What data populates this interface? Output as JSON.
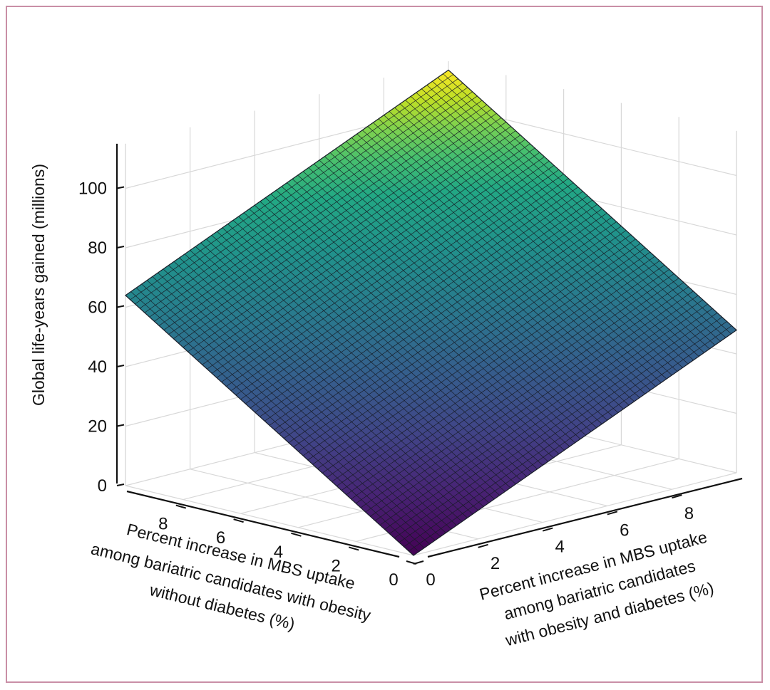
{
  "chart_data": {
    "type": "surface",
    "title": "",
    "zlabel": "Global life-years gained (millions)",
    "xlabel_lines": [
      "Percent increase in MBS uptake",
      "among bariatric candidates with obesity",
      "without diabetes (%)"
    ],
    "ylabel_lines": [
      "Percent increase in MBS uptake",
      "among bariatric candidates",
      "with obesity and diabetes (%)"
    ],
    "x_ticks": [
      "0",
      "2",
      "4",
      "6",
      "8"
    ],
    "y_ticks": [
      "0",
      "2",
      "4",
      "6",
      "8"
    ],
    "z_ticks": [
      "0",
      "20",
      "40",
      "60",
      "80",
      "100"
    ],
    "xlim": [
      0,
      10
    ],
    "ylim": [
      0,
      10
    ],
    "zlim": [
      0,
      115
    ],
    "grid": true,
    "colormap": "viridis",
    "corners": [
      {
        "x": 0,
        "y": 0,
        "z": 0
      },
      {
        "x": 10,
        "y": 0,
        "z": 64
      },
      {
        "x": 0,
        "y": 10,
        "z": 48
      },
      {
        "x": 10,
        "y": 10,
        "z": 112
      }
    ],
    "surface_model": "z = 6.4*x + 4.8*y",
    "mesh_divisions": 60
  }
}
